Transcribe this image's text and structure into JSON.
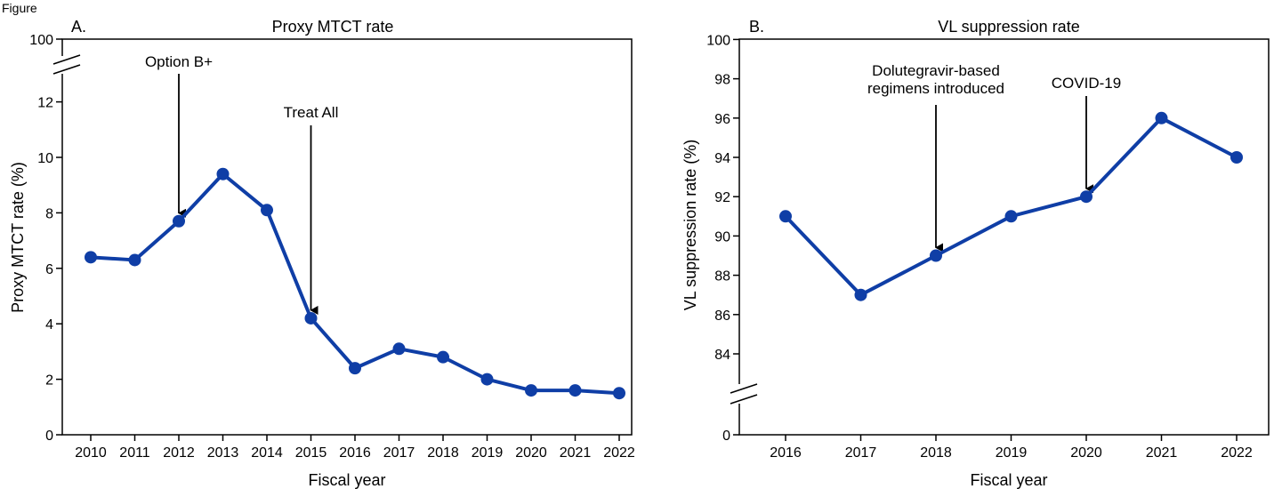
{
  "figure_label": "Figure",
  "series_color": "#0f3ea6",
  "chart_data": [
    {
      "type": "line",
      "panel_label": "A.",
      "title": "Proxy MTCT rate",
      "xlabel": "Fiscal year",
      "ylabel": "Proxy MTCT rate (%)",
      "x": [
        "2010",
        "2011",
        "2012",
        "2013",
        "2014",
        "2015",
        "2016",
        "2017",
        "2018",
        "2019",
        "2020",
        "2021",
        "2022"
      ],
      "values": [
        6.4,
        6.3,
        7.7,
        9.4,
        8.1,
        4.2,
        2.4,
        3.1,
        2.8,
        2.0,
        1.6,
        1.6,
        1.5
      ],
      "ylim": [
        0,
        12
      ],
      "y_ticks": [
        "0",
        "2",
        "4",
        "6",
        "8",
        "10",
        "12"
      ],
      "y_break_label": "100",
      "grid": false,
      "annotations": [
        {
          "label": "Option B+",
          "x": "2012",
          "y": 7.7
        },
        {
          "label": "Treat All",
          "x": "2015",
          "y": 4.2
        }
      ]
    },
    {
      "type": "line",
      "panel_label": "B.",
      "title": "VL suppression rate",
      "xlabel": "Fiscal year",
      "ylabel": "VL suppression rate (%)",
      "x": [
        "2016",
        "2017",
        "2018",
        "2019",
        "2020",
        "2021",
        "2022"
      ],
      "values": [
        91,
        87,
        89,
        91,
        92,
        96,
        94
      ],
      "ylim": [
        84,
        100
      ],
      "y_ticks": [
        "84",
        "86",
        "88",
        "90",
        "92",
        "94",
        "96",
        "98",
        "100"
      ],
      "y_break_label": "0",
      "grid": false,
      "annotations": [
        {
          "label": "Dolutegravir-based regimens introduced",
          "lines": [
            "Dolutegravir-based",
            "regimens introduced"
          ],
          "x": "2018",
          "y": 89
        },
        {
          "label": "COVID-19",
          "x": "2020",
          "y": 92
        }
      ]
    }
  ]
}
